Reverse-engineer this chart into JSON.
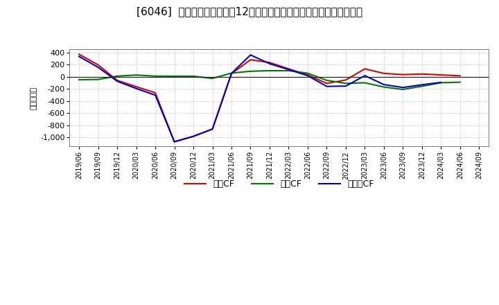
{
  "title": "[6046]  キャッシュフローの12か月移動合計の対前年同期増減額の推移",
  "ylabel": "（百万円）",
  "background_color": "#ffffff",
  "plot_bg_color": "#ffffff",
  "grid_color": "#aaaaaa",
  "ylim": [
    -1150,
    450
  ],
  "yticks": [
    -1000,
    -800,
    -600,
    -400,
    -200,
    0,
    200,
    400
  ],
  "x_labels": [
    "2019/06",
    "2019/09",
    "2019/12",
    "2020/03",
    "2020/06",
    "2020/09",
    "2020/12",
    "2021/03",
    "2021/06",
    "2021/09",
    "2021/12",
    "2022/03",
    "2022/06",
    "2022/09",
    "2022/12",
    "2023/03",
    "2023/06",
    "2023/09",
    "2023/12",
    "2024/03",
    "2024/06",
    "2024/09"
  ],
  "operating_cf": [
    370,
    195,
    -60,
    -165,
    -265,
    -1075,
    -985,
    -865,
    50,
    280,
    235,
    130,
    30,
    -110,
    -55,
    130,
    55,
    35,
    45,
    30,
    15,
    null
  ],
  "investing_cf": [
    -50,
    -45,
    10,
    28,
    10,
    8,
    8,
    -28,
    60,
    90,
    100,
    100,
    58,
    -60,
    -110,
    -100,
    -170,
    -210,
    -158,
    -100,
    -90,
    null
  ],
  "free_cf": [
    335,
    155,
    -75,
    -195,
    -305,
    -1075,
    -985,
    -865,
    55,
    360,
    215,
    118,
    18,
    -160,
    -155,
    18,
    -130,
    -178,
    -133,
    -93,
    null,
    null
  ],
  "operating_color": "#dd0000",
  "investing_color": "#007700",
  "free_color": "#0000cc",
  "legend_labels": [
    "営業CF",
    "投資CF",
    "フリーCF"
  ],
  "line_width": 1.5,
  "title_fontsize": 11
}
